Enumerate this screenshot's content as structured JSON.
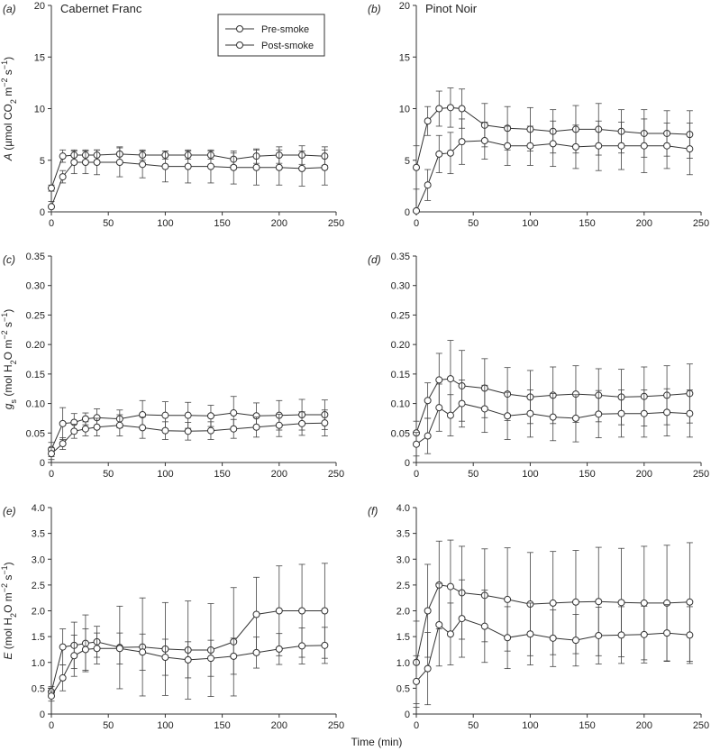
{
  "figure": {
    "xlabel": "Time (min)"
  },
  "legend": {
    "pre": "Pre-smoke",
    "post": "Post-smoke"
  },
  "chart_data": [
    {
      "id": "a",
      "panel_label": "(a)",
      "title": "Cabernet Franc",
      "type": "line",
      "ylabel": {
        "symbol": "A",
        "rest": " (µmol CO",
        "sub": "2",
        "mid": " m",
        "sup1": "−2",
        "s": " s",
        "sup2": "−1",
        "end": ")"
      },
      "xlim": [
        0,
        250
      ],
      "xticks": [
        0,
        50,
        100,
        150,
        200,
        250
      ],
      "ylim": [
        0,
        20
      ],
      "yticks": [
        "0",
        "5",
        "10",
        "15",
        "20"
      ],
      "x": [
        0,
        10,
        20,
        30,
        40,
        60,
        80,
        100,
        120,
        140,
        160,
        180,
        200,
        220,
        240
      ],
      "series": [
        {
          "name": "Pre-smoke",
          "values": [
            2.3,
            5.4,
            5.5,
            5.5,
            5.5,
            5.6,
            5.5,
            5.5,
            5.5,
            5.5,
            5.1,
            5.4,
            5.5,
            5.5,
            5.4
          ],
          "err": [
            0.3,
            0.6,
            0.5,
            0.5,
            0.5,
            0.7,
            0.5,
            0.4,
            0.4,
            0.4,
            0.6,
            0.7,
            0.8,
            0.9,
            0.9
          ]
        },
        {
          "name": "Post-smoke",
          "values": [
            0.5,
            3.4,
            4.8,
            4.8,
            4.8,
            4.8,
            4.6,
            4.4,
            4.4,
            4.4,
            4.3,
            4.3,
            4.3,
            4.2,
            4.3
          ],
          "err": [
            0.5,
            0.6,
            1.1,
            1.1,
            1.2,
            1.4,
            1.3,
            1.5,
            1.6,
            1.6,
            1.6,
            1.7,
            1.7,
            1.7,
            1.7
          ]
        }
      ]
    },
    {
      "id": "b",
      "panel_label": "(b)",
      "title": "Pinot Noir",
      "type": "line",
      "ylabel": null,
      "xlim": [
        0,
        250
      ],
      "xticks": [
        0,
        50,
        100,
        150,
        200,
        250
      ],
      "ylim": [
        0,
        20
      ],
      "yticks": [
        "0",
        "5",
        "10",
        "15",
        "20"
      ],
      "x": [
        0,
        10,
        20,
        30,
        40,
        60,
        80,
        100,
        120,
        140,
        160,
        180,
        200,
        220,
        240
      ],
      "series": [
        {
          "name": "Pre-smoke",
          "values": [
            4.3,
            8.8,
            10.0,
            10.1,
            10.0,
            8.4,
            8.1,
            8.0,
            7.8,
            8.0,
            8.0,
            7.8,
            7.6,
            7.6,
            7.5
          ],
          "err": [
            2.1,
            1.4,
            1.7,
            1.9,
            1.9,
            2.1,
            2.1,
            2.1,
            2.1,
            2.3,
            2.5,
            2.1,
            2.3,
            2.2,
            2.3
          ]
        },
        {
          "name": "Post-smoke",
          "values": [
            0.1,
            2.6,
            5.6,
            5.7,
            6.8,
            6.9,
            6.4,
            6.4,
            6.6,
            6.3,
            6.4,
            6.4,
            6.4,
            6.4,
            6.1
          ],
          "err": [
            0.1,
            1.5,
            1.8,
            2.0,
            2.2,
            1.8,
            1.9,
            1.9,
            2.2,
            2.1,
            2.4,
            2.3,
            2.6,
            2.2,
            2.5
          ]
        }
      ]
    },
    {
      "id": "c",
      "panel_label": "(c)",
      "title": "",
      "type": "line",
      "ylabel": {
        "symbol": "g",
        "symsub": "s",
        "rest": " (mol H",
        "sub": "2",
        "mid": "O m",
        "sup1": "−2",
        "s": " s",
        "sup2": "−1",
        "end": ")"
      },
      "xlim": [
        0,
        250
      ],
      "xticks": [
        0,
        50,
        100,
        150,
        200,
        250
      ],
      "ylim": [
        0,
        0.35
      ],
      "yticks": [
        "0",
        "0.05",
        "0.10",
        "0.15",
        "0.20",
        "0.25",
        "0.30",
        "0.35"
      ],
      "x": [
        0,
        10,
        20,
        30,
        40,
        60,
        80,
        100,
        120,
        140,
        160,
        180,
        200,
        220,
        240
      ],
      "series": [
        {
          "name": "Pre-smoke",
          "values": [
            0.022,
            0.066,
            0.068,
            0.074,
            0.076,
            0.074,
            0.081,
            0.08,
            0.08,
            0.079,
            0.084,
            0.079,
            0.08,
            0.081,
            0.081
          ],
          "err": [
            0.012,
            0.027,
            0.015,
            0.01,
            0.015,
            0.015,
            0.024,
            0.023,
            0.022,
            0.018,
            0.028,
            0.022,
            0.025,
            0.026,
            0.025
          ]
        },
        {
          "name": "Post-smoke",
          "values": [
            0.015,
            0.032,
            0.053,
            0.057,
            0.06,
            0.063,
            0.059,
            0.054,
            0.053,
            0.054,
            0.057,
            0.06,
            0.063,
            0.066,
            0.067
          ],
          "err": [
            0.01,
            0.01,
            0.012,
            0.012,
            0.015,
            0.018,
            0.018,
            0.015,
            0.015,
            0.015,
            0.016,
            0.017,
            0.019,
            0.02,
            0.022
          ]
        }
      ]
    },
    {
      "id": "d",
      "panel_label": "(d)",
      "title": "",
      "type": "line",
      "ylabel": null,
      "xlim": [
        0,
        250
      ],
      "xticks": [
        0,
        50,
        100,
        150,
        200,
        250
      ],
      "ylim": [
        0,
        0.35
      ],
      "yticks": [
        "0",
        "0.05",
        "0.10",
        "0.15",
        "0.20",
        "0.25",
        "0.30",
        "0.35"
      ],
      "x": [
        0,
        10,
        20,
        30,
        40,
        60,
        80,
        100,
        120,
        140,
        160,
        180,
        200,
        220,
        240
      ],
      "series": [
        {
          "name": "Pre-smoke",
          "values": [
            0.05,
            0.105,
            0.14,
            0.142,
            0.13,
            0.126,
            0.116,
            0.111,
            0.114,
            0.116,
            0.114,
            0.111,
            0.112,
            0.114,
            0.117
          ],
          "err": [
            0.02,
            0.03,
            0.045,
            0.065,
            0.06,
            0.05,
            0.045,
            0.045,
            0.048,
            0.048,
            0.045,
            0.047,
            0.05,
            0.05,
            0.05
          ]
        },
        {
          "name": "Post-smoke",
          "values": [
            0.031,
            0.045,
            0.093,
            0.08,
            0.1,
            0.091,
            0.079,
            0.083,
            0.077,
            0.075,
            0.082,
            0.083,
            0.083,
            0.085,
            0.083
          ],
          "err": [
            0.02,
            0.03,
            0.04,
            0.035,
            0.04,
            0.04,
            0.04,
            0.04,
            0.04,
            0.04,
            0.04,
            0.04,
            0.04,
            0.04,
            0.04
          ]
        }
      ]
    },
    {
      "id": "e",
      "panel_label": "(e)",
      "title": "",
      "type": "line",
      "ylabel": {
        "symbol": "E",
        "rest": " (mol H",
        "sub": "2",
        "mid": "O m",
        "sup1": "−2",
        "s": " s",
        "sup2": "−1",
        "end": ")"
      },
      "xlim": [
        0,
        250
      ],
      "xticks": [
        0,
        50,
        100,
        150,
        200,
        250
      ],
      "ylim": [
        0,
        4
      ],
      "yticks": [
        "0",
        "0.5",
        "1.0",
        "1.5",
        "2.0",
        "2.5",
        "3.0",
        "3.5",
        "4.0"
      ],
      "x": [
        0,
        10,
        20,
        30,
        40,
        60,
        80,
        100,
        120,
        140,
        160,
        180,
        200,
        220,
        240
      ],
      "series": [
        {
          "name": "Pre-smoke",
          "values": [
            0.43,
            1.3,
            1.33,
            1.37,
            1.4,
            1.29,
            1.3,
            1.26,
            1.24,
            1.24,
            1.4,
            1.93,
            2.0,
            2.0,
            2.0
          ],
          "err": [
            0.1,
            0.35,
            0.45,
            0.55,
            0.3,
            0.8,
            0.95,
            0.9,
            0.95,
            0.9,
            1.05,
            0.72,
            0.87,
            0.9,
            0.92
          ]
        },
        {
          "name": "Post-smoke",
          "values": [
            0.35,
            0.7,
            1.13,
            1.25,
            1.27,
            1.27,
            1.2,
            1.1,
            1.05,
            1.08,
            1.12,
            1.19,
            1.26,
            1.32,
            1.33
          ],
          "err": [
            0.1,
            0.25,
            0.4,
            0.4,
            0.3,
            0.3,
            0.35,
            0.35,
            0.35,
            0.35,
            0.35,
            0.3,
            0.3,
            0.35,
            0.35
          ]
        }
      ]
    },
    {
      "id": "f",
      "panel_label": "(f)",
      "title": "",
      "type": "line",
      "ylabel": null,
      "xlim": [
        0,
        250
      ],
      "xticks": [
        0,
        50,
        100,
        150,
        200,
        250
      ],
      "ylim": [
        0,
        4
      ],
      "yticks": [
        "0",
        "0.5",
        "1.0",
        "1.5",
        "2.0",
        "2.5",
        "3.0",
        "3.5",
        "4.0"
      ],
      "x": [
        0,
        10,
        20,
        30,
        40,
        60,
        80,
        100,
        120,
        140,
        160,
        180,
        200,
        220,
        240
      ],
      "series": [
        {
          "name": "Pre-smoke",
          "values": [
            1.0,
            2.0,
            2.5,
            2.47,
            2.35,
            2.3,
            2.22,
            2.13,
            2.15,
            2.17,
            2.18,
            2.16,
            2.15,
            2.15,
            2.17
          ],
          "err": [
            0.8,
            0.9,
            0.85,
            0.9,
            0.9,
            0.9,
            1.0,
            1.0,
            1.0,
            1.0,
            1.05,
            1.05,
            1.1,
            1.12,
            1.15
          ]
        },
        {
          "name": "Post-smoke",
          "values": [
            0.63,
            0.88,
            1.73,
            1.55,
            1.85,
            1.7,
            1.48,
            1.55,
            1.47,
            1.43,
            1.52,
            1.53,
            1.54,
            1.57,
            1.53
          ],
          "err": [
            0.5,
            0.7,
            0.8,
            0.6,
            0.75,
            0.7,
            0.6,
            0.6,
            0.55,
            0.5,
            0.55,
            0.55,
            0.55,
            0.55,
            0.55
          ]
        }
      ]
    }
  ]
}
